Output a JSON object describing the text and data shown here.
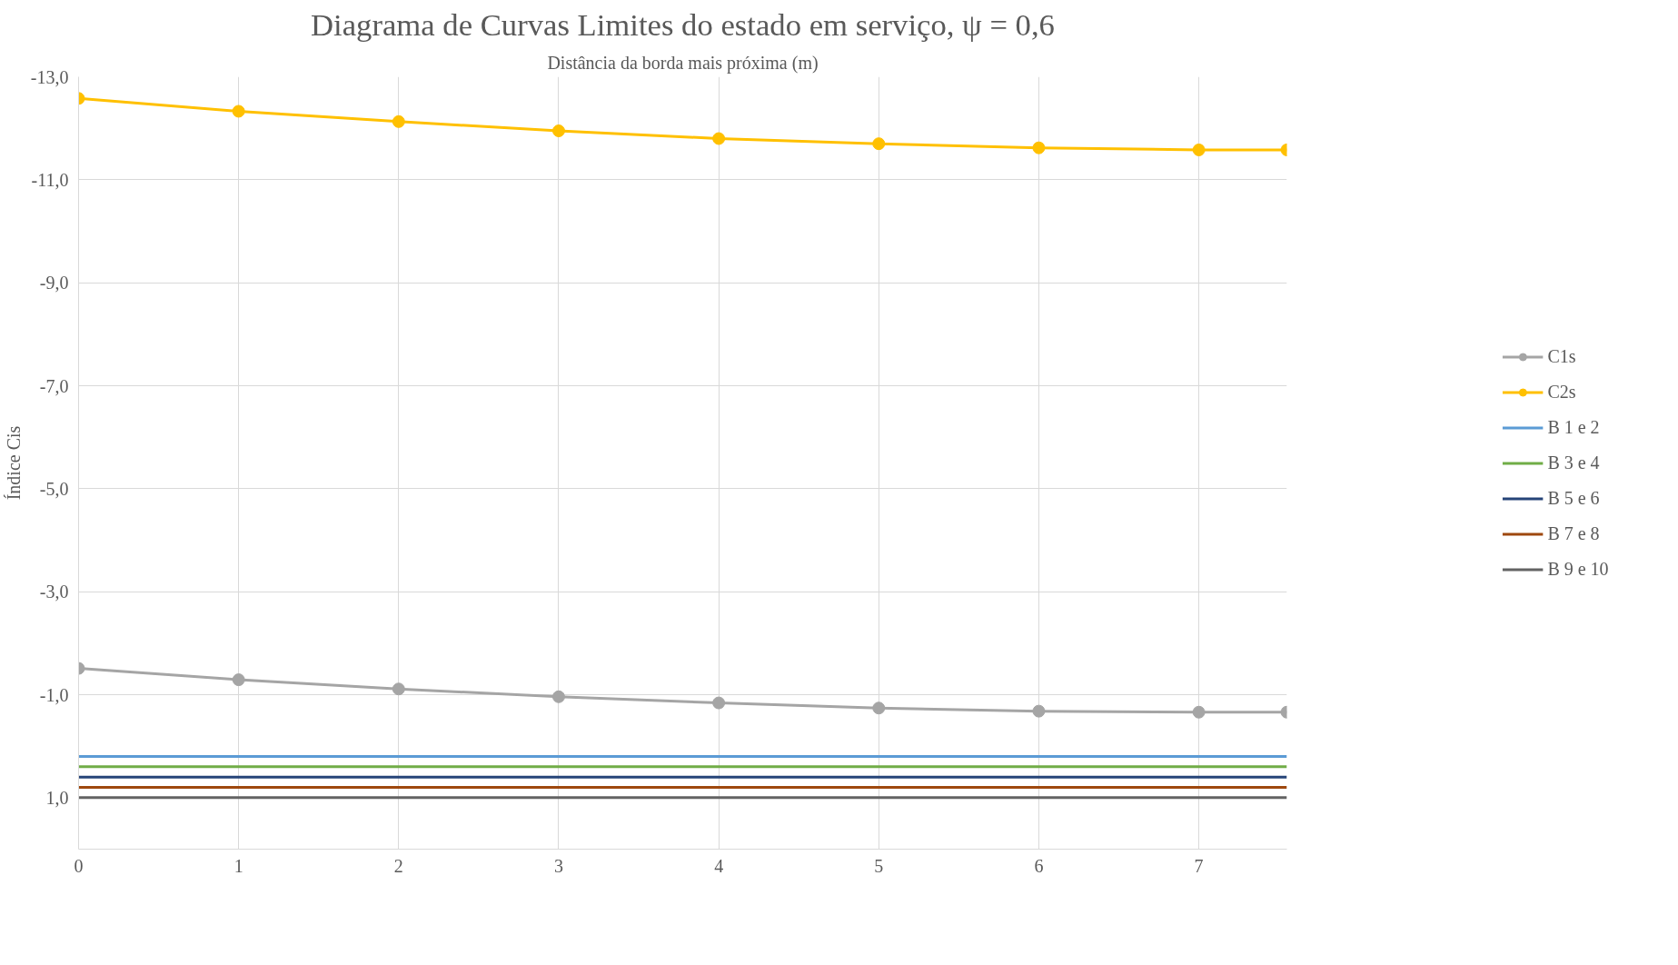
{
  "chart_data": {
    "type": "line",
    "title": "Diagrama de Curvas Limites do estado em serviço, ψ = 0,6",
    "xlabel": "Distância da borda mais próxima (m)",
    "ylabel": "Índice Cis",
    "x": [
      0,
      1,
      2,
      3,
      4,
      5,
      6,
      7,
      7.55
    ],
    "series": [
      {
        "name": "C1s",
        "color": "#a5a5a5",
        "marker": "circle",
        "values": [
          -1.51,
          -1.29,
          -1.11,
          -0.96,
          -0.84,
          -0.74,
          -0.68,
          -0.66,
          -0.66
        ]
      },
      {
        "name": "C2s",
        "color": "#ffc000",
        "marker": "circle",
        "values": [
          -12.58,
          -12.33,
          -12.13,
          -11.95,
          -11.8,
          -11.7,
          -11.62,
          -11.58,
          -11.58
        ]
      },
      {
        "name": "B 1 e 2",
        "color": "#5b9bd5",
        "marker": "none",
        "values": [
          0.2,
          0.2,
          0.2,
          0.2,
          0.2,
          0.2,
          0.2,
          0.2,
          0.2
        ]
      },
      {
        "name": "B 3 e 4",
        "color": "#70ad47",
        "marker": "none",
        "values": [
          0.4,
          0.4,
          0.4,
          0.4,
          0.4,
          0.4,
          0.4,
          0.4,
          0.4
        ]
      },
      {
        "name": "B 5 e 6",
        "color": "#264478",
        "marker": "none",
        "values": [
          0.6,
          0.6,
          0.6,
          0.6,
          0.6,
          0.6,
          0.6,
          0.6,
          0.6
        ]
      },
      {
        "name": "B 7 e 8",
        "color": "#9e480e",
        "marker": "none",
        "values": [
          0.8,
          0.8,
          0.8,
          0.8,
          0.8,
          0.8,
          0.8,
          0.8,
          0.8
        ]
      },
      {
        "name": "B 9 e 10",
        "color": "#636363",
        "marker": "none",
        "values": [
          1.0,
          1.0,
          1.0,
          1.0,
          1.0,
          1.0,
          1.0,
          1.0,
          1.0
        ]
      }
    ],
    "xlim": [
      0,
      7.55
    ],
    "xticks": [
      0,
      1,
      2,
      3,
      4,
      5,
      6,
      7
    ],
    "ylim": [
      2,
      -13
    ],
    "yticks": [
      {
        "value": -13,
        "label": "-13,0"
      },
      {
        "value": -11,
        "label": "-11,0"
      },
      {
        "value": -9,
        "label": "-9,0"
      },
      {
        "value": -7,
        "label": "-7,0"
      },
      {
        "value": -5,
        "label": "-5,0"
      },
      {
        "value": -3,
        "label": "-3,0"
      },
      {
        "value": -1,
        "label": "-1,0"
      },
      {
        "value": 1,
        "label": "1,0"
      }
    ],
    "grid": true,
    "legend": "right"
  }
}
